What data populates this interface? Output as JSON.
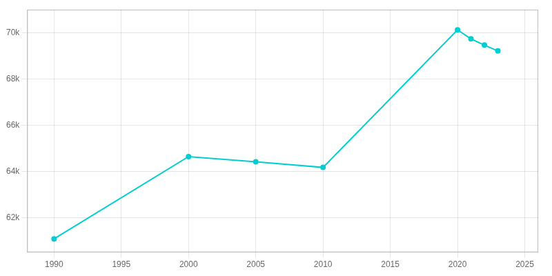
{
  "chart_data": {
    "type": "line",
    "x": [
      1990,
      2000,
      2005,
      2010,
      2020,
      2021,
      2022,
      2023
    ],
    "values": [
      61080,
      64639,
      64412,
      64173,
      70127,
      69736,
      69468,
      69212
    ],
    "color": "#00CED1",
    "marker": "circle",
    "xlim": [
      1988,
      2026
    ],
    "xticks": [
      1990,
      1995,
      2000,
      2005,
      2010,
      2015,
      2020,
      2025
    ],
    "ylim": [
      60500,
      71000
    ],
    "yticks": [
      {
        "value": 62000,
        "label": "62k"
      },
      {
        "value": 64000,
        "label": "64k"
      },
      {
        "value": 66000,
        "label": "66k"
      },
      {
        "value": 68000,
        "label": "68k"
      },
      {
        "value": 70000,
        "label": "70k"
      }
    ],
    "grid": true
  }
}
